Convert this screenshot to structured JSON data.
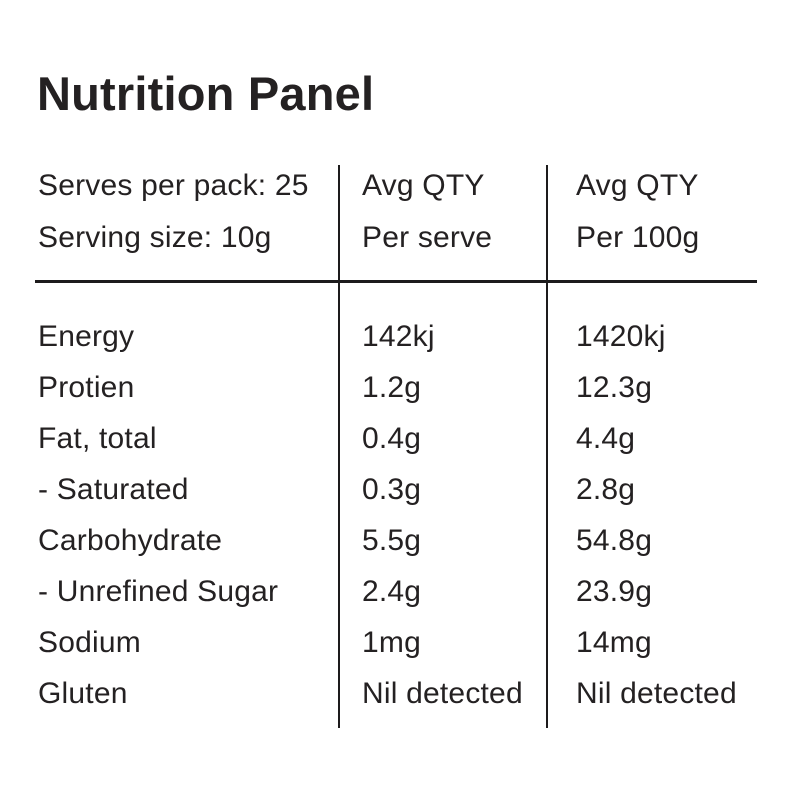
{
  "page": {
    "title": "Nutrition Panel",
    "background_color": "#ffffff",
    "text_color": "#242122",
    "line_color": "#1d1b1c"
  },
  "table": {
    "header": {
      "serves_per_pack": "Serves per pack: 25",
      "serving_size": "Serving size: 10g",
      "per_serve_qty_label": "Avg QTY",
      "per_serve_unit_label": "Per serve",
      "per_100g_qty_label": "Avg QTY",
      "per_100g_unit_label": "Per 100g"
    },
    "rows": [
      {
        "label": "Energy",
        "per_serve": "142kj",
        "per_100g": "1420kj"
      },
      {
        "label": "Protien",
        "per_serve": "1.2g",
        "per_100g": "12.3g"
      },
      {
        "label": "Fat, total",
        "per_serve": "0.4g",
        "per_100g": "4.4g"
      },
      {
        "label": "- Saturated",
        "per_serve": "0.3g",
        "per_100g": "2.8g"
      },
      {
        "label": "Carbohydrate",
        "per_serve": "5.5g",
        "per_100g": "54.8g"
      },
      {
        "label": "- Unrefined Sugar",
        "per_serve": "2.4g",
        "per_100g": "23.9g"
      },
      {
        "label": "Sodium",
        "per_serve": "1mg",
        "per_100g": "14mg"
      },
      {
        "label": "Gluten",
        "per_serve": "Nil detected",
        "per_100g": "Nil detected"
      }
    ]
  }
}
